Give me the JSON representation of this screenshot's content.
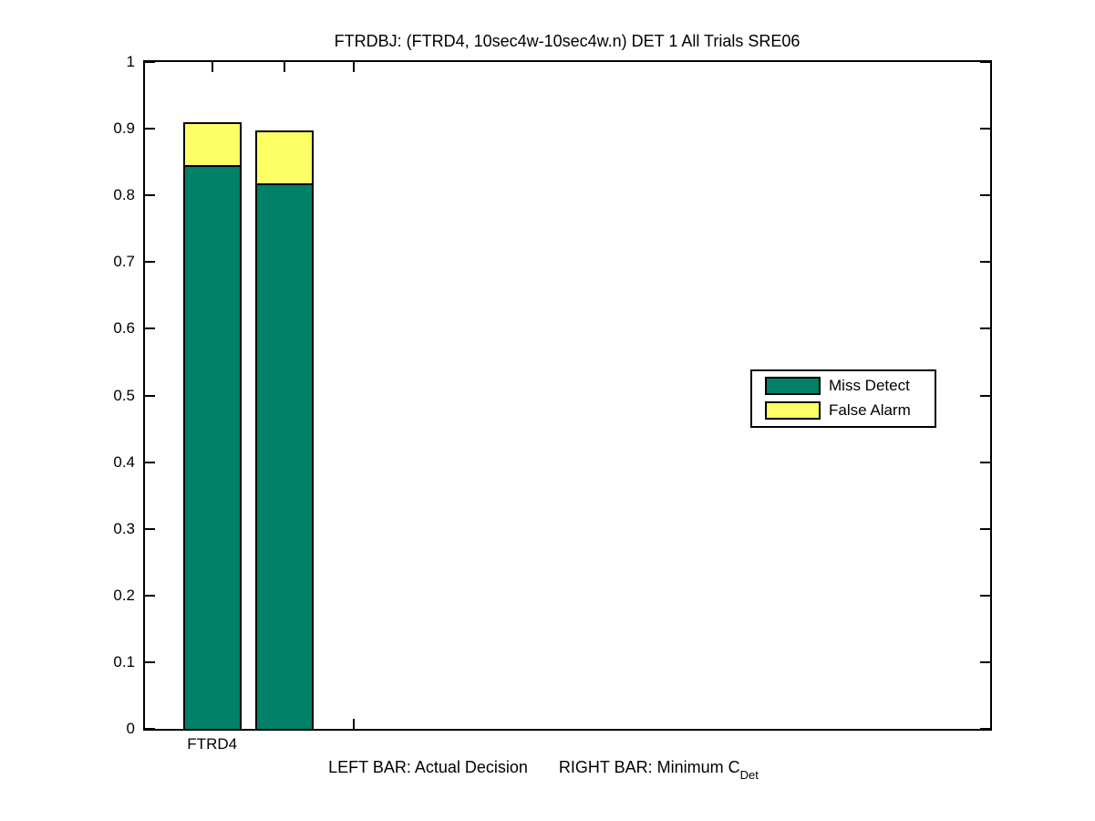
{
  "chart_data": {
    "type": "bar",
    "stacked": true,
    "title": "FTRDBJ: (FTRD4, 10sec4w-10sec4w.n) DET 1 All Trials SRE06",
    "xlabel": {
      "left_part": "LEFT BAR: Actual Decision",
      "right_part": "RIGHT BAR: Minimum C",
      "subscript": "Det",
      "full_text": "LEFT BAR: Actual Decision     RIGHT BAR: Minimum C_Det"
    },
    "ylabel": "",
    "ylim": [
      0,
      1
    ],
    "yticks": [
      0,
      0.1,
      0.2,
      0.3,
      0.4,
      0.5,
      0.6,
      0.7,
      0.8,
      0.9,
      1
    ],
    "ytick_labels": [
      "0",
      "0.1",
      "0.2",
      "0.3",
      "0.4",
      "0.5",
      "0.6",
      "0.7",
      "0.8",
      "0.9",
      "1"
    ],
    "categories": [
      "FTRD4"
    ],
    "grid": false,
    "legend": {
      "position": "middle-right",
      "entries": [
        {
          "label": "Miss Detect",
          "color": "#008066"
        },
        {
          "label": "False Alarm",
          "color": "#ffff66"
        }
      ]
    },
    "bars": [
      {
        "bar": "left",
        "meaning": "Actual Decision",
        "segments": [
          {
            "series": "Miss Detect",
            "value": 0.845
          },
          {
            "series": "False Alarm",
            "value": 0.065
          }
        ],
        "total": 0.91
      },
      {
        "bar": "right",
        "meaning": "Minimum CDet",
        "segments": [
          {
            "series": "Miss Detect",
            "value": 0.818
          },
          {
            "series": "False Alarm",
            "value": 0.08
          }
        ],
        "total": 0.898
      }
    ],
    "colors": {
      "miss_detect": "#008066",
      "false_alarm": "#ffff66",
      "axis": "#000000",
      "background": "#ffffff"
    }
  }
}
